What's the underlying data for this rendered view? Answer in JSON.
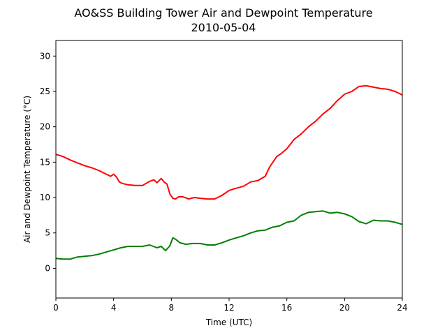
{
  "chart_data": {
    "type": "line",
    "title": "AO&SS Building Tower Air and Dewpoint Temperature",
    "subtitle": "2010-05-04",
    "xlabel": "Time (UTC)",
    "ylabel": "Air and Dewpoint Temperature (°C)",
    "xlim": [
      0,
      24
    ],
    "ylim": [
      -4.2,
      32.2
    ],
    "xticks": [
      0,
      4,
      8,
      12,
      16,
      20,
      24
    ],
    "yticks": [
      0,
      5,
      10,
      15,
      20,
      25,
      30
    ],
    "grid": false,
    "legend": "none",
    "series": [
      {
        "color": "#ff0000",
        "x": [
          0,
          0.5,
          1,
          1.5,
          2,
          2.5,
          3,
          3.5,
          3.8,
          4,
          4.2,
          4.4,
          4.6,
          4.8,
          5,
          5.5,
          6,
          6.5,
          6.8,
          7,
          7.3,
          7.5,
          7.7,
          7.9,
          8.1,
          8.3,
          8.5,
          8.8,
          9.2,
          9.6,
          10,
          10.5,
          11,
          11.5,
          12,
          12.3,
          13,
          13.5,
          14,
          14.5,
          14.8,
          15.3,
          15.6,
          16,
          16.5,
          17,
          17.5,
          18,
          18.5,
          19,
          19.5,
          20,
          20.5,
          21,
          21.5,
          22,
          22.5,
          23,
          23.5,
          24
        ],
        "y": [
          16.1,
          15.8,
          15.3,
          14.9,
          14.5,
          14.2,
          13.8,
          13.3,
          13.0,
          13.3,
          12.9,
          12.2,
          12.0,
          11.9,
          11.8,
          11.7,
          11.7,
          12.3,
          12.5,
          12.1,
          12.7,
          12.2,
          11.9,
          10.5,
          9.9,
          9.8,
          10.1,
          10.1,
          9.8,
          10.0,
          9.9,
          9.8,
          9.8,
          10.3,
          11.0,
          11.2,
          11.6,
          12.2,
          12.4,
          13.0,
          14.3,
          15.8,
          16.2,
          16.9,
          18.2,
          19.0,
          20.0,
          20.8,
          21.8,
          22.6,
          23.7,
          24.6,
          25.0,
          25.7,
          25.8,
          25.6,
          25.4,
          25.3,
          25.0,
          24.5
        ]
      },
      {
        "color": "#008000",
        "x": [
          0,
          0.5,
          1,
          1.5,
          2,
          2.5,
          3,
          3.5,
          4,
          4.5,
          5,
          5.5,
          6,
          6.5,
          7,
          7.3,
          7.6,
          7.9,
          8.1,
          8.3,
          8.6,
          9,
          9.5,
          10,
          10.5,
          11,
          11.5,
          12,
          12.5,
          13,
          13.5,
          14,
          14.5,
          15,
          15.5,
          16,
          16.5,
          17,
          17.5,
          18,
          18.5,
          19,
          19.5,
          20,
          20.5,
          21,
          21.5,
          22,
          22.5,
          23,
          23.5,
          24
        ],
        "y": [
          1.4,
          1.3,
          1.3,
          1.6,
          1.7,
          1.8,
          2.0,
          2.3,
          2.6,
          2.9,
          3.1,
          3.1,
          3.1,
          3.3,
          2.9,
          3.1,
          2.5,
          3.2,
          4.3,
          4.1,
          3.6,
          3.4,
          3.5,
          3.5,
          3.3,
          3.3,
          3.6,
          4.0,
          4.3,
          4.6,
          5.0,
          5.3,
          5.4,
          5.8,
          6.0,
          6.5,
          6.7,
          7.5,
          7.9,
          8.0,
          8.1,
          7.8,
          7.9,
          7.7,
          7.3,
          6.6,
          6.3,
          6.8,
          6.7,
          6.7,
          6.5,
          6.2
        ]
      }
    ]
  }
}
